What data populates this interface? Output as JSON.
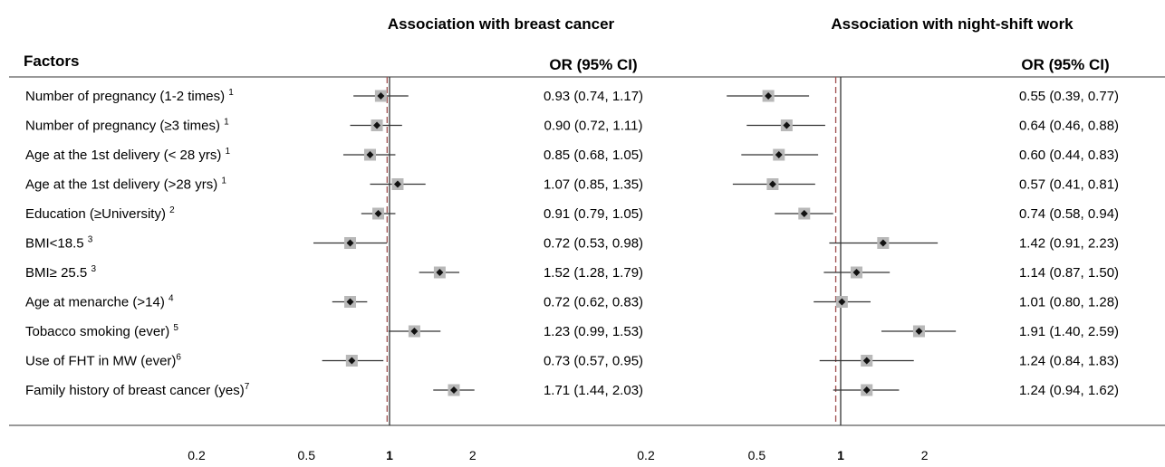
{
  "titles": {
    "left": "Association with breast cancer",
    "right": "Association with night-shift work"
  },
  "headers": {
    "factors": "Factors",
    "or_left": "OR (95% CI)",
    "or_right": "OR (95% CI)"
  },
  "chart_data": {
    "type": "forest",
    "x_scale": "log",
    "xlim": [
      0.15,
      3.0
    ],
    "ticks": [
      {
        "value": 0.2,
        "label": "0.2",
        "bold": false
      },
      {
        "value": 0.5,
        "label": "0.5",
        "bold": false
      },
      {
        "value": 1,
        "label": "1",
        "bold": true
      },
      {
        "value": 2,
        "label": "2",
        "bold": false
      }
    ],
    "reference_line": 1,
    "dashed_line_left": 0.98,
    "dashed_line_right": 0.96,
    "factors": [
      {
        "label": "Number of pregnancy (1-2 times) ",
        "sup": "1",
        "breast_cancer": {
          "or": 0.93,
          "lo": 0.74,
          "hi": 1.17,
          "text": "0.93 (0.74, 1.17)"
        },
        "night_shift": {
          "or": 0.55,
          "lo": 0.39,
          "hi": 0.77,
          "text": "0.55 (0.39, 0.77)"
        }
      },
      {
        "label": "Number of pregnancy (≥3 times) ",
        "sup": "1",
        "breast_cancer": {
          "or": 0.9,
          "lo": 0.72,
          "hi": 1.11,
          "text": "0.90 (0.72, 1.11)"
        },
        "night_shift": {
          "or": 0.64,
          "lo": 0.46,
          "hi": 0.88,
          "text": "0.64 (0.46, 0.88)"
        }
      },
      {
        "label": "Age at the 1st delivery  (< 28 yrs) ",
        "sup": "1",
        "breast_cancer": {
          "or": 0.85,
          "lo": 0.68,
          "hi": 1.05,
          "text": "0.85 (0.68, 1.05)"
        },
        "night_shift": {
          "or": 0.6,
          "lo": 0.44,
          "hi": 0.83,
          "text": "0.60 (0.44, 0.83)"
        }
      },
      {
        "label": "Age at the 1st delivery  (>28 yrs) ",
        "sup": "1",
        "breast_cancer": {
          "or": 1.07,
          "lo": 0.85,
          "hi": 1.35,
          "text": "1.07 (0.85, 1.35)"
        },
        "night_shift": {
          "or": 0.57,
          "lo": 0.41,
          "hi": 0.81,
          "text": "0.57 (0.41, 0.81)"
        }
      },
      {
        "label": "Education (≥University)  ",
        "sup": "2",
        "breast_cancer": {
          "or": 0.91,
          "lo": 0.79,
          "hi": 1.05,
          "text": "0.91 (0.79, 1.05)"
        },
        "night_shift": {
          "or": 0.74,
          "lo": 0.58,
          "hi": 0.94,
          "text": "0.74 (0.58, 0.94)"
        }
      },
      {
        "label": "BMI<18.5 ",
        "sup": "3",
        "breast_cancer": {
          "or": 0.72,
          "lo": 0.53,
          "hi": 0.98,
          "text": "0.72 (0.53, 0.98)"
        },
        "night_shift": {
          "or": 1.42,
          "lo": 0.91,
          "hi": 2.23,
          "text": "1.42 (0.91, 2.23)"
        }
      },
      {
        "label": "BMI≥ 25.5 ",
        "sup": "3",
        "breast_cancer": {
          "or": 1.52,
          "lo": 1.28,
          "hi": 1.79,
          "text": "1.52 (1.28, 1.79)"
        },
        "night_shift": {
          "or": 1.14,
          "lo": 0.87,
          "hi": 1.5,
          "text": "1.14 (0.87, 1.50)"
        }
      },
      {
        "label": "Age at menarche (>14) ",
        "sup": "4",
        "breast_cancer": {
          "or": 0.72,
          "lo": 0.62,
          "hi": 0.83,
          "text": "0.72 (0.62, 0.83)"
        },
        "night_shift": {
          "or": 1.01,
          "lo": 0.8,
          "hi": 1.28,
          "text": "1.01 (0.80, 1.28)"
        }
      },
      {
        "label": "Tobacco smoking (ever)  ",
        "sup": "5",
        "breast_cancer": {
          "or": 1.23,
          "lo": 0.99,
          "hi": 1.53,
          "text": "1.23 (0.99, 1.53)"
        },
        "night_shift": {
          "or": 1.91,
          "lo": 1.4,
          "hi": 2.59,
          "text": "1.91 (1.40, 2.59)"
        }
      },
      {
        "label": "Use of FHT in MW (ever)",
        "sup": "6",
        "breast_cancer": {
          "or": 0.73,
          "lo": 0.57,
          "hi": 0.95,
          "text": "0.73 (0.57, 0.95)"
        },
        "night_shift": {
          "or": 1.24,
          "lo": 0.84,
          "hi": 1.83,
          "text": "1.24 (0.84, 1.83)"
        }
      },
      {
        "label": "Family history of breast cancer (yes)",
        "sup": "7",
        "breast_cancer": {
          "or": 1.71,
          "lo": 1.44,
          "hi": 2.03,
          "text": "1.71 (1.44, 2.03)"
        },
        "night_shift": {
          "or": 1.24,
          "lo": 0.94,
          "hi": 1.62,
          "text": "1.24 (0.94, 1.62)"
        }
      }
    ]
  },
  "colors": {
    "text": "#111111",
    "box": "#b8b8b8",
    "diamond": "#111111",
    "dashed": "#a05050",
    "axis": "#333333"
  }
}
